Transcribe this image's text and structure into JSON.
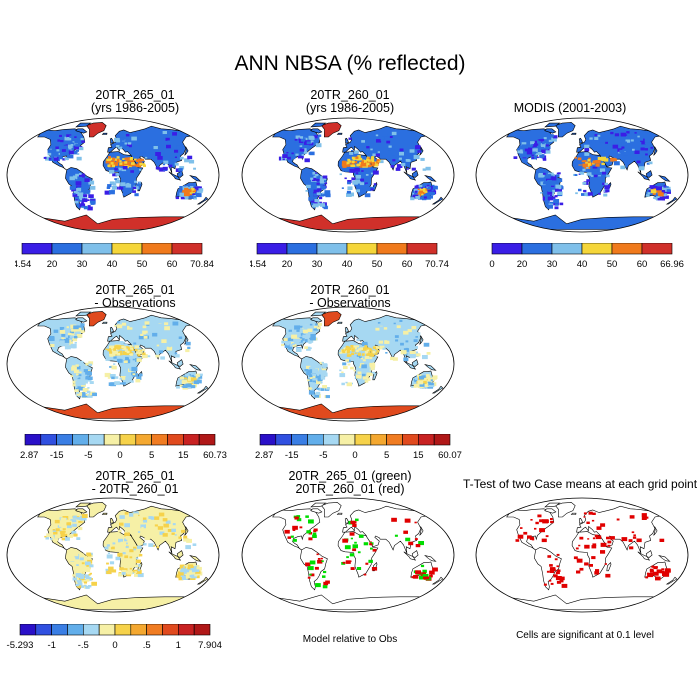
{
  "title": "ANN NBSA (% reflected)",
  "colors": {
    "ocean": "#ffffff",
    "border": "#000000",
    "green": "#00dd00",
    "red": "#e00000",
    "abs_scale": [
      "#3a1ee6",
      "#2b6fe0",
      "#7fc0ea",
      "#f5d63a",
      "#f07a1c",
      "#d0302a"
    ],
    "diff_scale": [
      "#2a10c8",
      "#3050e0",
      "#3a7ee4",
      "#62aeea",
      "#a6d8f2",
      "#f6f0a6",
      "#f6d24a",
      "#f4a830",
      "#f07c22",
      "#e04a1e",
      "#c82222",
      "#b01818"
    ]
  },
  "panels": [
    {
      "id": "p1",
      "title_lines": [
        "20TR_265_01",
        "(yrs 1986-2005)"
      ],
      "kind": "abs",
      "colorbar": {
        "labels": [
          "4.54",
          "20",
          "30",
          "40",
          "50",
          "60",
          "70.84"
        ]
      }
    },
    {
      "id": "p2",
      "title_lines": [
        "20TR_260_01",
        "(yrs 1986-2005)"
      ],
      "kind": "abs",
      "colorbar": {
        "labels": [
          "4.54",
          "20",
          "30",
          "40",
          "50",
          "60",
          "70.74"
        ]
      }
    },
    {
      "id": "p3",
      "title_lines": [
        "MODIS (2001-2003)"
      ],
      "kind": "abs",
      "colorbar": {
        "labels": [
          "0",
          "20",
          "30",
          "40",
          "50",
          "60",
          "66.96"
        ]
      }
    },
    {
      "id": "p4",
      "title_lines": [
        "20TR_265_01",
        "- Observations"
      ],
      "kind": "diff",
      "colorbar": {
        "labels": [
          "-32.87",
          "-15",
          "-5",
          "0",
          "5",
          "15",
          "60.73"
        ]
      }
    },
    {
      "id": "p5",
      "title_lines": [
        "20TR_260_01",
        "- Observations"
      ],
      "kind": "diff",
      "colorbar": {
        "labels": [
          "-32.87",
          "-15",
          "-5",
          "0",
          "5",
          "15",
          "60.07"
        ]
      }
    },
    {
      "id": "p6",
      "title_lines": [
        "20TR_265_01",
        "- 20TR_260_01"
      ],
      "kind": "diff2",
      "colorbar": {
        "labels": [
          "-5.293",
          "-1",
          "-.5",
          "0",
          ".5",
          "1",
          "7.904"
        ]
      }
    },
    {
      "id": "p7",
      "title_lines": [
        "20TR_265_01 (green)",
        "20TR_260_01 (red)"
      ],
      "kind": "sig2",
      "note": "Model relative to Obs"
    },
    {
      "id": "p8",
      "title_lines": [
        "T-Test of two Case means at each grid point"
      ],
      "kind": "sig",
      "note": "Cells are significant at 0.1 level"
    }
  ],
  "chart_data": {
    "type": "heatmap",
    "title": "ANN NBSA (% reflected)",
    "maps": [
      {
        "title": "20TR_265_01 (yrs 1986-2005)",
        "range": [
          4.54,
          70.84
        ],
        "levels": [
          20,
          30,
          40,
          50,
          60
        ]
      },
      {
        "title": "20TR_260_01 (yrs 1986-2005)",
        "range": [
          4.54,
          70.74
        ],
        "levels": [
          20,
          30,
          40,
          50,
          60
        ]
      },
      {
        "title": "MODIS (2001-2003)",
        "range": [
          0,
          66.96
        ],
        "levels": [
          20,
          30,
          40,
          50,
          60
        ]
      },
      {
        "title": "20TR_265_01 - Observations",
        "range": [
          -32.87,
          60.73
        ],
        "labelled_levels": [
          -15,
          -5,
          0,
          5,
          15
        ]
      },
      {
        "title": "20TR_260_01 - Observations",
        "range": [
          -32.87,
          60.07
        ],
        "labelled_levels": [
          -15,
          -5,
          0,
          5,
          15
        ]
      },
      {
        "title": "20TR_265_01 - 20TR_260_01",
        "range": [
          -5.293,
          7.904
        ],
        "labelled_levels": [
          -1,
          -0.5,
          0,
          0.5,
          1
        ]
      },
      {
        "title": "20TR_265_01 (green) 20TR_260_01 (red)",
        "note": "Model relative to Obs"
      },
      {
        "title": "T-Test of two Case means at each grid point",
        "note": "Cells are significant at 0.1 level"
      }
    ]
  }
}
